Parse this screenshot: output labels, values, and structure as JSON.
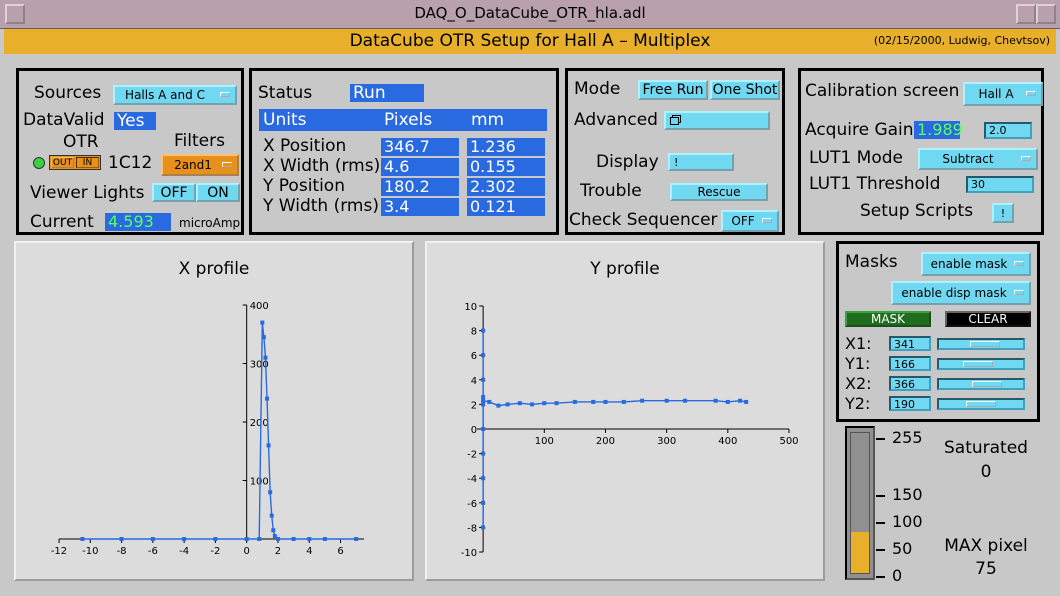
{
  "window": {
    "title": "DAQ_O_DataCube_OTR_hla.adl"
  },
  "header": {
    "title": "DataCube  OTR  Setup  for  Hall A – Multiplex",
    "credit": "(02/15/2000, Ludwig, Chevtsov)"
  },
  "sources_panel": {
    "sources_label": "Sources",
    "sources_value": "Halls A and C",
    "datavalid_label": "DataValid",
    "datavalid_value": "Yes",
    "otr_label": "OTR",
    "otr_out": "OUT",
    "otr_in": "IN",
    "otr_id": "1C12",
    "filters_label": "Filters",
    "filters_value": "2and1",
    "viewer_lights_label": "Viewer Lights",
    "viewer_off": "OFF",
    "viewer_on": "ON",
    "current_label": "Current",
    "current_value": "4.593",
    "current_unit": "microAmp"
  },
  "status_panel": {
    "status_label": "Status",
    "status_value": "Run",
    "col_units": "Units",
    "col_pixels": "Pixels",
    "col_mm": "mm",
    "rows": [
      {
        "label": "X Position",
        "pixels": "346.7",
        "mm": "1.236"
      },
      {
        "label": "X Width (rms)",
        "pixels": "4.6",
        "mm": "0.155"
      },
      {
        "label": "Y Position",
        "pixels": "180.2",
        "mm": "2.302"
      },
      {
        "label": "Y Width (rms)",
        "pixels": "3.4",
        "mm": "0.121"
      }
    ]
  },
  "mode_panel": {
    "mode_label": "Mode",
    "free_run": "Free Run",
    "one_shot": "One Shot",
    "advanced_label": "Advanced",
    "display_label": "Display",
    "display_btn": "!",
    "trouble_label": "Trouble",
    "rescue_btn": "Rescue",
    "check_label": "Check Sequencer",
    "check_value": "OFF"
  },
  "calib_panel": {
    "calib_label": "Calibration screen",
    "calib_value": "Hall A",
    "gain_label": "Acquire Gain",
    "gain_value": "1.989",
    "gain_input": "2.0",
    "lut_mode_label": "LUT1 Mode",
    "lut_mode_value": "Subtract",
    "lut_thresh_label": "LUT1 Threshold",
    "lut_thresh_value": "30",
    "scripts_label": "Setup Scripts",
    "scripts_btn": "!"
  },
  "x_profile": {
    "title": "X profile"
  },
  "y_profile": {
    "title": "Y profile"
  },
  "masks_panel": {
    "masks_label": "Masks",
    "enable_mask": "enable mask",
    "enable_disp_mask": "enable disp mask",
    "mask_btn": "MASK",
    "clear_btn": "CLEAR",
    "rows": [
      {
        "label": "X1:",
        "value": "341",
        "level": 0.58
      },
      {
        "label": "Y1:",
        "value": "166",
        "level": 0.45
      },
      {
        "label": "X2:",
        "value": "366",
        "level": 0.62
      },
      {
        "label": "Y2:",
        "value": "190",
        "level": 0.5
      }
    ]
  },
  "saturation": {
    "saturated_label": "Saturated",
    "saturated_value": "0",
    "max_label": "MAX pixel",
    "max_value": "75",
    "scale": [
      "255",
      "150",
      "100",
      "50",
      "0"
    ],
    "level": 75
  },
  "colors": {
    "accent": "#2a6ae0",
    "header": "#e8b02a",
    "button": "#70d8f0",
    "plot": "#2a6ae0"
  },
  "chart_data": [
    {
      "type": "line",
      "title": "X profile",
      "xlim": [
        -12,
        7.5
      ],
      "ylim": [
        0,
        400
      ],
      "x_ticks": [
        -12,
        -10,
        -8,
        -6,
        -4,
        -2,
        0,
        2,
        4,
        6
      ],
      "y_ticks": [
        100,
        200,
        300,
        400
      ],
      "series": [
        {
          "x": [
            -10.5,
            -8,
            -6,
            -4,
            -2,
            0,
            0.8,
            1.0,
            1.1,
            1.2,
            1.3,
            1.4,
            1.5,
            1.6,
            1.7,
            1.8,
            2.0,
            3,
            4,
            5,
            7
          ],
          "y": [
            0,
            0,
            0,
            0,
            0,
            0,
            0,
            370,
            345,
            310,
            240,
            160,
            80,
            40,
            15,
            5,
            0,
            0,
            0,
            0,
            0
          ]
        }
      ]
    },
    {
      "type": "line",
      "title": "Y profile",
      "xlim": [
        -10,
        500
      ],
      "ylim": [
        -10,
        10
      ],
      "x_ticks": [
        100,
        200,
        300,
        400,
        500
      ],
      "y_ticks": [
        -10,
        -8,
        -6,
        -4,
        -2,
        0,
        2,
        4,
        6,
        8,
        10
      ],
      "series": [
        {
          "x": [
            0,
            0,
            0,
            0,
            0,
            0,
            0,
            0,
            0,
            0,
            0,
            10,
            25,
            40,
            60,
            80,
            100,
            120,
            150,
            180,
            200,
            230,
            260,
            300,
            330,
            380,
            400,
            420,
            430
          ],
          "y": [
            -8,
            -6,
            -4,
            -2,
            0,
            2,
            4,
            6,
            8,
            2.6,
            2.3,
            2.2,
            1.9,
            2.0,
            2.1,
            2.0,
            2.1,
            2.1,
            2.2,
            2.2,
            2.2,
            2.2,
            2.3,
            2.3,
            2.3,
            2.3,
            2.2,
            2.3,
            2.2
          ]
        }
      ]
    }
  ]
}
